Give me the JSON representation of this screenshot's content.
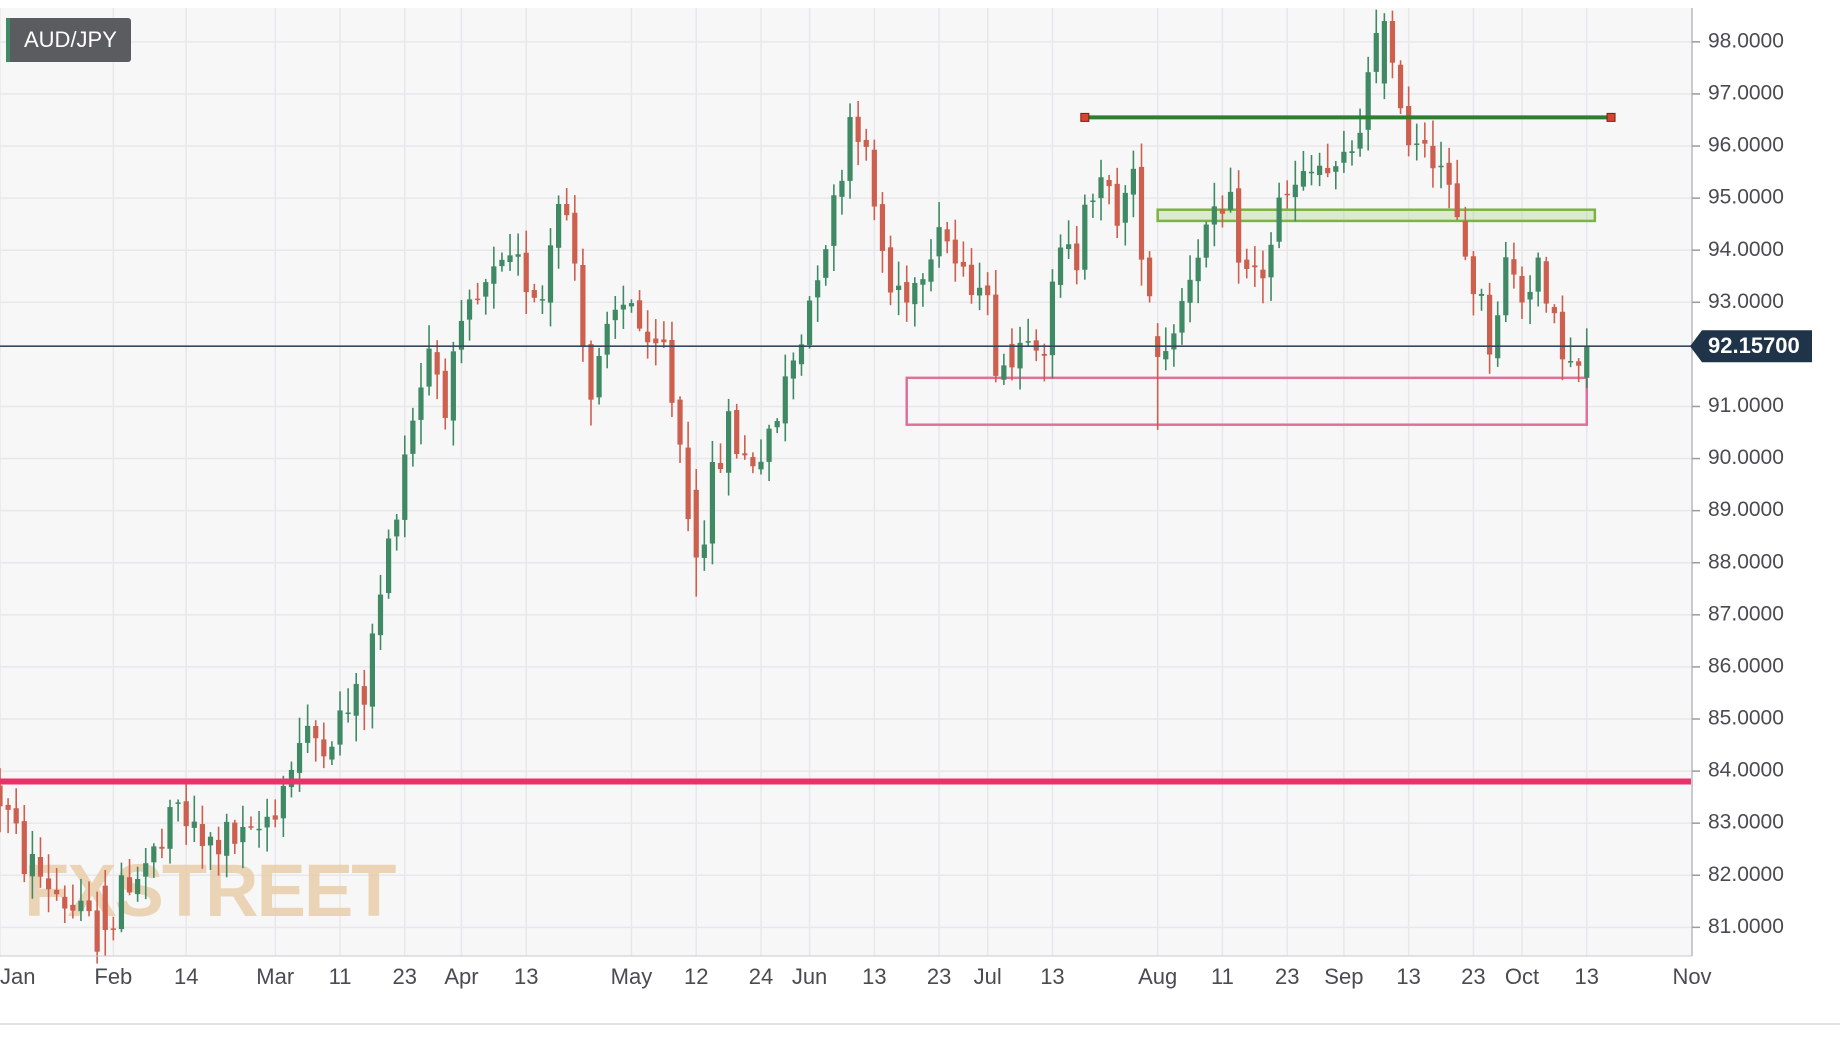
{
  "chart_data": {
    "type": "candlestick",
    "symbol_label": "AUD/JPY",
    "current_price_label": "92.15700",
    "current_price": 92.157,
    "ylim": [
      80.45,
      98.65
    ],
    "y_ticks": [
      {
        "value": 98,
        "label": "98.0000"
      },
      {
        "value": 97,
        "label": "97.0000"
      },
      {
        "value": 96,
        "label": "96.0000"
      },
      {
        "value": 95,
        "label": "95.0000"
      },
      {
        "value": 94,
        "label": "94.0000"
      },
      {
        "value": 93,
        "label": "93.0000"
      },
      {
        "value": 91,
        "label": "91.0000"
      },
      {
        "value": 90,
        "label": "90.0000"
      },
      {
        "value": 89,
        "label": "89.0000"
      },
      {
        "value": 88,
        "label": "88.0000"
      },
      {
        "value": 87,
        "label": "87.0000"
      },
      {
        "value": 86,
        "label": "86.0000"
      },
      {
        "value": 85,
        "label": "85.0000"
      },
      {
        "value": 84,
        "label": "84.0000"
      },
      {
        "value": 83,
        "label": "83.0000"
      },
      {
        "value": 82,
        "label": "82.0000"
      },
      {
        "value": 81,
        "label": "81.0000"
      }
    ],
    "x_ticks": [
      {
        "label": "Jan",
        "day": 0
      },
      {
        "label": "Feb",
        "day": 14
      },
      {
        "label": "14",
        "day": 23
      },
      {
        "label": "Mar",
        "day": 34
      },
      {
        "label": "11",
        "day": 42
      },
      {
        "label": "23",
        "day": 50
      },
      {
        "label": "Apr",
        "day": 57
      },
      {
        "label": "13",
        "day": 65
      },
      {
        "label": "May",
        "day": 78
      },
      {
        "label": "12",
        "day": 86
      },
      {
        "label": "24",
        "day": 94
      },
      {
        "label": "Jun",
        "day": 100
      },
      {
        "label": "13",
        "day": 108
      },
      {
        "label": "23",
        "day": 116
      },
      {
        "label": "Jul",
        "day": 122
      },
      {
        "label": "13",
        "day": 130
      },
      {
        "label": "Aug",
        "day": 143
      },
      {
        "label": "11",
        "day": 151
      },
      {
        "label": "23",
        "day": 159
      },
      {
        "label": "Sep",
        "day": 166
      },
      {
        "label": "13",
        "day": 174
      },
      {
        "label": "23",
        "day": 182
      },
      {
        "label": "Oct",
        "day": 188
      },
      {
        "label": "13",
        "day": 196
      },
      {
        "label": "Nov",
        "day": 209
      }
    ],
    "x_domain": [
      0,
      209
    ],
    "candle_count": 196,
    "anchors": [
      [
        0,
        83.5
      ],
      [
        3,
        82.3
      ],
      [
        7,
        81.7
      ],
      [
        11,
        81.0
      ],
      [
        13,
        80.8
      ],
      [
        16,
        82.0
      ],
      [
        20,
        82.5
      ],
      [
        22,
        83.3
      ],
      [
        25,
        82.5
      ],
      [
        28,
        82.7
      ],
      [
        31,
        82.6
      ],
      [
        34,
        83.4
      ],
      [
        37,
        84.5
      ],
      [
        41,
        84.8
      ],
      [
        45,
        85.5
      ],
      [
        48,
        88.3
      ],
      [
        50,
        90.2
      ],
      [
        53,
        92.2
      ],
      [
        55,
        91.2
      ],
      [
        58,
        92.7
      ],
      [
        61,
        93.4
      ],
      [
        64,
        93.6
      ],
      [
        67,
        93.2
      ],
      [
        69,
        95.3
      ],
      [
        71,
        93.8
      ],
      [
        73,
        91.2
      ],
      [
        76,
        92.7
      ],
      [
        78,
        93.2
      ],
      [
        80,
        91.8
      ],
      [
        82,
        92.1
      ],
      [
        84,
        90.3
      ],
      [
        86,
        88.0
      ],
      [
        88,
        89.5
      ],
      [
        90,
        90.6
      ],
      [
        92,
        90.0
      ],
      [
        95,
        90.2
      ],
      [
        97,
        91.4
      ],
      [
        99,
        92.4
      ],
      [
        101,
        93.8
      ],
      [
        103,
        94.8
      ],
      [
        105,
        96.6
      ],
      [
        106,
        96.5
      ],
      [
        108,
        94.8
      ],
      [
        110,
        93.2
      ],
      [
        113,
        93.4
      ],
      [
        116,
        94.7
      ],
      [
        119,
        93.3
      ],
      [
        121,
        93.7
      ],
      [
        123,
        92.0
      ],
      [
        125,
        91.8
      ],
      [
        127,
        92.7
      ],
      [
        129,
        92.3
      ],
      [
        131,
        93.8
      ],
      [
        133,
        93.9
      ],
      [
        134,
        95.3
      ],
      [
        136,
        95.1
      ],
      [
        138,
        94.8
      ],
      [
        140,
        95.2
      ],
      [
        142,
        93.3
      ],
      [
        144,
        92.2
      ],
      [
        146,
        93.1
      ],
      [
        148,
        94.2
      ],
      [
        150,
        94.4
      ],
      [
        152,
        94.7
      ],
      [
        154,
        93.5
      ],
      [
        156,
        93.6
      ],
      [
        158,
        94.8
      ],
      [
        160,
        95.1
      ],
      [
        163,
        95.6
      ],
      [
        165,
        95.3
      ],
      [
        167,
        96.0
      ],
      [
        169,
        97.2
      ],
      [
        171,
        98.3
      ],
      [
        172,
        98.0
      ],
      [
        174,
        96.2
      ],
      [
        176,
        96.3
      ],
      [
        178,
        95.7
      ],
      [
        180,
        94.4
      ],
      [
        182,
        93.4
      ],
      [
        184,
        92.3
      ],
      [
        186,
        93.7
      ],
      [
        188,
        93.2
      ],
      [
        190,
        93.8
      ],
      [
        191,
        92.6
      ],
      [
        193,
        92.3
      ],
      [
        194,
        91.7
      ],
      [
        195,
        91.7
      ],
      [
        196,
        92.1
      ]
    ],
    "forced_candles": [
      {
        "day": 143,
        "open": 92.35,
        "close": 91.95,
        "high": 92.6,
        "low": 90.55
      },
      {
        "day": 125,
        "open": 92.2,
        "close": 91.75,
        "high": 92.5,
        "low": 91.5
      },
      {
        "day": 86,
        "open": 89.4,
        "close": 88.1,
        "high": 89.8,
        "low": 87.35
      },
      {
        "day": 13,
        "open": 81.8,
        "close": 80.95,
        "high": 82.1,
        "low": 80.45
      },
      {
        "day": 171,
        "open": 97.2,
        "close": 98.4,
        "high": 98.55,
        "low": 96.9
      },
      {
        "day": 172,
        "open": 98.4,
        "close": 97.6,
        "high": 98.6,
        "low": 97.3
      },
      {
        "day": 196,
        "open": 91.55,
        "close": 92.15,
        "high": 92.5,
        "low": 91.35
      }
    ],
    "annotations": {
      "resistance_line": {
        "price": 96.55,
        "from_day": 134,
        "to_day": 199,
        "color": "#2e7d32"
      },
      "resistance_zone": {
        "low": 94.62,
        "high": 94.72,
        "from_day": 143,
        "to_day": 197,
        "color": "#7cb342"
      },
      "support_zone": {
        "low": 90.65,
        "high": 91.55,
        "from_day": 112,
        "to_day": 196,
        "color": "#e0709a"
      },
      "horizontal_line": {
        "price": 83.8,
        "color": "#e8336a"
      }
    },
    "colors": {
      "up": "#3f8a64",
      "down": "#cd5f4e",
      "current_price_line": "#37495f",
      "current_price_badge": "#1f3349",
      "grid": "#e8e8ec",
      "background": "#f7f7f8"
    },
    "watermark": "FXSTREET"
  }
}
